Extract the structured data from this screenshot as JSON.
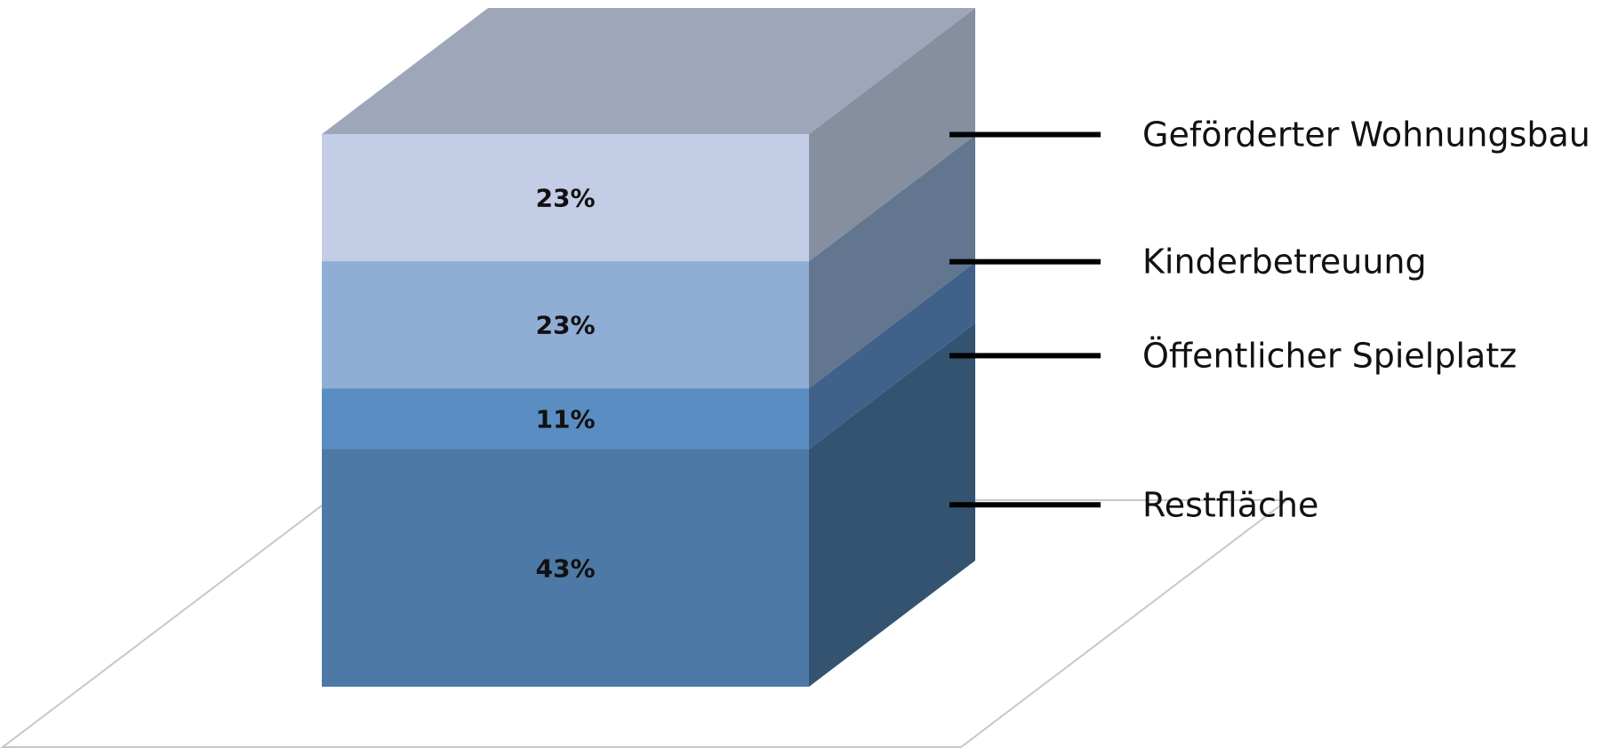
{
  "chart_data": {
    "type": "bar",
    "stacked": true,
    "three_d": true,
    "title": "",
    "xlabel": "",
    "ylabel": "",
    "ylim": [
      0,
      100
    ],
    "unit": "%",
    "grid": false,
    "legend_position": "right",
    "series": [
      {
        "name": "Restfläche",
        "value": 43,
        "label": "43%",
        "color": "#4d79a6",
        "side_color": "#335370"
      },
      {
        "name": "Öffentlicher Spielplatz",
        "value": 11,
        "label": "11%",
        "color": "#5a8dc1",
        "side_color": "#3f618a"
      },
      {
        "name": "Kinderbetreuung",
        "value": 23,
        "label": "23%",
        "color": "#90add6",
        "side_color": "#62778f"
      },
      {
        "name": "Geförderter Wohnungsbau",
        "value": 23,
        "label": "23%",
        "color": "#c3cde6",
        "side_color": "#868f9f"
      }
    ],
    "top_color": "#9ea6b9",
    "floor_stroke": "#c8c8c8"
  }
}
